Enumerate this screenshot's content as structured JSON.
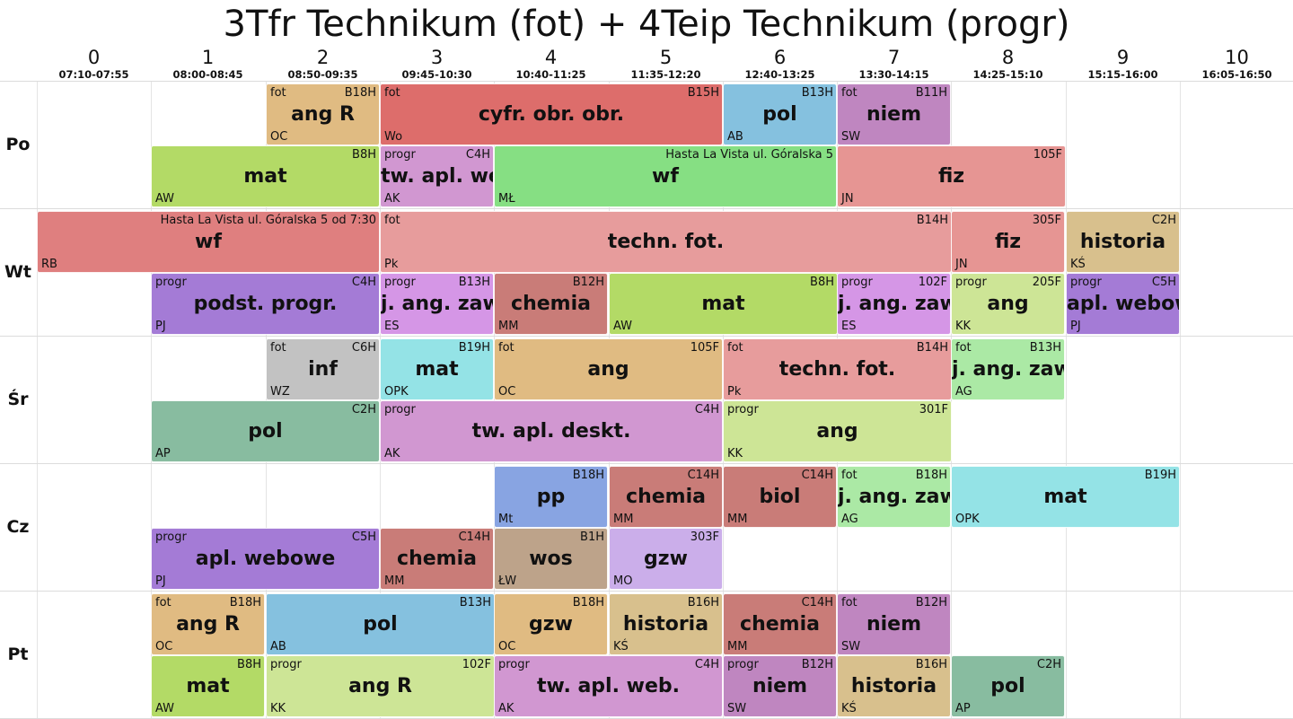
{
  "title": "3Tfr Technikum (fot) + 4Teip Technikum (progr)",
  "periods": [
    {
      "num": "0",
      "time": "07:10-07:55"
    },
    {
      "num": "1",
      "time": "08:00-08:45"
    },
    {
      "num": "2",
      "time": "08:50-09:35"
    },
    {
      "num": "3",
      "time": "09:45-10:30"
    },
    {
      "num": "4",
      "time": "10:40-11:25"
    },
    {
      "num": "5",
      "time": "11:35-12:20"
    },
    {
      "num": "6",
      "time": "12:40-13:25"
    },
    {
      "num": "7",
      "time": "13:30-14:15"
    },
    {
      "num": "8",
      "time": "14:25-15:10"
    },
    {
      "num": "9",
      "time": "15:15-16:00"
    },
    {
      "num": "10",
      "time": "16:05-16:50"
    }
  ],
  "days": [
    "Po",
    "Wt",
    "Śr",
    "Cz",
    "Pt"
  ],
  "lessons": [
    {
      "day": 0,
      "row": 0,
      "start": 2,
      "span": 1,
      "group": "fot",
      "room": "B18H",
      "subject": "ang R",
      "teacher": "OC",
      "color": "#e0bb82"
    },
    {
      "day": 0,
      "row": 0,
      "start": 3,
      "span": 3,
      "group": "fot",
      "room": "B15H",
      "subject": "cyfr. obr. obr.",
      "teacher": "Wo",
      "color": "#dd6d6b"
    },
    {
      "day": 0,
      "row": 0,
      "start": 6,
      "span": 1,
      "group": "",
      "room": "B13H",
      "subject": "pol",
      "teacher": "AB",
      "color": "#85c1df"
    },
    {
      "day": 0,
      "row": 0,
      "start": 7,
      "span": 1,
      "group": "fot",
      "room": "B11H",
      "subject": "niem",
      "teacher": "SW",
      "color": "#bf86c0"
    },
    {
      "day": 0,
      "row": 1,
      "start": 1,
      "span": 2,
      "group": "",
      "room": "B8H",
      "subject": "mat",
      "teacher": "AW",
      "color": "#b3da66"
    },
    {
      "day": 0,
      "row": 1,
      "start": 3,
      "span": 1,
      "group": "progr",
      "room": "C4H",
      "subject": "tw. apl. web.",
      "teacher": "AK",
      "color": "#d197d1"
    },
    {
      "day": 0,
      "row": 1,
      "start": 4,
      "span": 3,
      "group": "",
      "room": "Hasta La Vista ul. Góralska 5",
      "subject": "wf",
      "teacher": "MŁ",
      "color": "#86df83"
    },
    {
      "day": 0,
      "row": 1,
      "start": 7,
      "span": 2,
      "group": "",
      "room": "105F",
      "subject": "fiz",
      "teacher": "JN",
      "color": "#e69593"
    },
    {
      "day": 1,
      "row": 0,
      "start": 0,
      "span": 3,
      "group": "",
      "room": "Hasta La Vista ul. Góralska 5 od 7:30",
      "subject": "wf",
      "teacher": "RB",
      "color": "#df7f7f"
    },
    {
      "day": 1,
      "row": 0,
      "start": 3,
      "span": 5,
      "group": "fot",
      "room": "B14H",
      "subject": "techn. fot.",
      "teacher": "Pk",
      "color": "#e79c9c"
    },
    {
      "day": 1,
      "row": 0,
      "start": 8,
      "span": 1,
      "group": "",
      "room": "305F",
      "subject": "fiz",
      "teacher": "JN",
      "color": "#e69593"
    },
    {
      "day": 1,
      "row": 0,
      "start": 9,
      "span": 1,
      "group": "",
      "room": "C2H",
      "subject": "historia",
      "teacher": "KŚ",
      "color": "#d8c08d"
    },
    {
      "day": 1,
      "row": 1,
      "start": 1,
      "span": 2,
      "group": "progr",
      "room": "C4H",
      "subject": "podst. progr.",
      "teacher": "PJ",
      "color": "#a47bd6"
    },
    {
      "day": 1,
      "row": 1,
      "start": 3,
      "span": 1,
      "group": "progr",
      "room": "B13H",
      "subject": "j. ang. zaw.",
      "teacher": "ES",
      "color": "#d596e6"
    },
    {
      "day": 1,
      "row": 1,
      "start": 4,
      "span": 1,
      "group": "",
      "room": "B12H",
      "subject": "chemia",
      "teacher": "MM",
      "color": "#c97c78"
    },
    {
      "day": 1,
      "row": 1,
      "start": 5,
      "span": 2,
      "group": "",
      "room": "B8H",
      "subject": "mat",
      "teacher": "AW",
      "color": "#b3da66"
    },
    {
      "day": 1,
      "row": 1,
      "start": 7,
      "span": 1,
      "group": "progr",
      "room": "102F",
      "subject": "j. ang. zaw.",
      "teacher": "ES",
      "color": "#d596e6"
    },
    {
      "day": 1,
      "row": 1,
      "start": 8,
      "span": 1,
      "group": "progr",
      "room": "205F",
      "subject": "ang",
      "teacher": "KK",
      "color": "#cde596"
    },
    {
      "day": 1,
      "row": 1,
      "start": 9,
      "span": 1,
      "group": "progr",
      "room": "C5H",
      "subject": "apl. webowe",
      "teacher": "PJ",
      "color": "#a47bd6"
    },
    {
      "day": 2,
      "row": 0,
      "start": 2,
      "span": 1,
      "group": "fot",
      "room": "C6H",
      "subject": "inf",
      "teacher": "WZ",
      "color": "#c2c2c2"
    },
    {
      "day": 2,
      "row": 0,
      "start": 3,
      "span": 1,
      "group": "",
      "room": "B19H",
      "subject": "mat",
      "teacher": "OPK",
      "color": "#94e3e6"
    },
    {
      "day": 2,
      "row": 0,
      "start": 4,
      "span": 2,
      "group": "fot",
      "room": "105F",
      "subject": "ang",
      "teacher": "OC",
      "color": "#e0bb82"
    },
    {
      "day": 2,
      "row": 0,
      "start": 6,
      "span": 2,
      "group": "fot",
      "room": "B14H",
      "subject": "techn. fot.",
      "teacher": "Pk",
      "color": "#e79c9c"
    },
    {
      "day": 2,
      "row": 0,
      "start": 8,
      "span": 1,
      "group": "fot",
      "room": "B13H",
      "subject": "j. ang. zaw.",
      "teacher": "AG",
      "color": "#abe9a5"
    },
    {
      "day": 2,
      "row": 1,
      "start": 1,
      "span": 2,
      "group": "",
      "room": "C2H",
      "subject": "pol",
      "teacher": "AP",
      "color": "#88bca0"
    },
    {
      "day": 2,
      "row": 1,
      "start": 3,
      "span": 3,
      "group": "progr",
      "room": "C4H",
      "subject": "tw. apl. deskt.",
      "teacher": "AK",
      "color": "#d197d1"
    },
    {
      "day": 2,
      "row": 1,
      "start": 6,
      "span": 2,
      "group": "progr",
      "room": "301F",
      "subject": "ang",
      "teacher": "KK",
      "color": "#cde596"
    },
    {
      "day": 3,
      "row": 0,
      "start": 4,
      "span": 1,
      "group": "",
      "room": "B18H",
      "subject": "pp",
      "teacher": "Mt",
      "color": "#88a4e2"
    },
    {
      "day": 3,
      "row": 0,
      "start": 5,
      "span": 1,
      "group": "",
      "room": "C14H",
      "subject": "chemia",
      "teacher": "MM",
      "color": "#c97c78"
    },
    {
      "day": 3,
      "row": 0,
      "start": 6,
      "span": 1,
      "group": "",
      "room": "C14H",
      "subject": "biol",
      "teacher": "MM",
      "color": "#c97c78"
    },
    {
      "day": 3,
      "row": 0,
      "start": 7,
      "span": 1,
      "group": "fot",
      "room": "B18H",
      "subject": "j. ang. zaw.",
      "teacher": "AG",
      "color": "#abe9a5"
    },
    {
      "day": 3,
      "row": 0,
      "start": 8,
      "span": 2,
      "group": "",
      "room": "B19H",
      "subject": "mat",
      "teacher": "OPK",
      "color": "#94e3e6"
    },
    {
      "day": 3,
      "row": 1,
      "start": 1,
      "span": 2,
      "group": "progr",
      "room": "C5H",
      "subject": "apl. webowe",
      "teacher": "PJ",
      "color": "#a47bd6"
    },
    {
      "day": 3,
      "row": 1,
      "start": 3,
      "span": 1,
      "group": "",
      "room": "C14H",
      "subject": "chemia",
      "teacher": "MM",
      "color": "#c97c78"
    },
    {
      "day": 3,
      "row": 1,
      "start": 4,
      "span": 1,
      "group": "",
      "room": "B1H",
      "subject": "wos",
      "teacher": "ŁW",
      "color": "#bda38a"
    },
    {
      "day": 3,
      "row": 1,
      "start": 5,
      "span": 1,
      "group": "",
      "room": "303F",
      "subject": "gzw",
      "teacher": "MO",
      "color": "#cbaeea"
    },
    {
      "day": 4,
      "row": 0,
      "start": 1,
      "span": 1,
      "group": "fot",
      "room": "B18H",
      "subject": "ang R",
      "teacher": "OC",
      "color": "#e0bb82"
    },
    {
      "day": 4,
      "row": 0,
      "start": 2,
      "span": 2,
      "group": "",
      "room": "B13H",
      "subject": "pol",
      "teacher": "AB",
      "color": "#85c1df"
    },
    {
      "day": 4,
      "row": 0,
      "start": 4,
      "span": 1,
      "group": "",
      "room": "B18H",
      "subject": "gzw",
      "teacher": "OC",
      "color": "#e0bb82"
    },
    {
      "day": 4,
      "row": 0,
      "start": 5,
      "span": 1,
      "group": "",
      "room": "B16H",
      "subject": "historia",
      "teacher": "KŚ",
      "color": "#d8c08d"
    },
    {
      "day": 4,
      "row": 0,
      "start": 6,
      "span": 1,
      "group": "",
      "room": "C14H",
      "subject": "chemia",
      "teacher": "MM",
      "color": "#c97c78"
    },
    {
      "day": 4,
      "row": 0,
      "start": 7,
      "span": 1,
      "group": "fot",
      "room": "B12H",
      "subject": "niem",
      "teacher": "SW",
      "color": "#bf86c0"
    },
    {
      "day": 4,
      "row": 1,
      "start": 1,
      "span": 1,
      "group": "",
      "room": "B8H",
      "subject": "mat",
      "teacher": "AW",
      "color": "#b3da66"
    },
    {
      "day": 4,
      "row": 1,
      "start": 2,
      "span": 2,
      "group": "progr",
      "room": "102F",
      "subject": "ang R",
      "teacher": "KK",
      "color": "#cde596"
    },
    {
      "day": 4,
      "row": 1,
      "start": 4,
      "span": 2,
      "group": "progr",
      "room": "C4H",
      "subject": "tw. apl. web.",
      "teacher": "AK",
      "color": "#d197d1"
    },
    {
      "day": 4,
      "row": 1,
      "start": 6,
      "span": 1,
      "group": "progr",
      "room": "B12H",
      "subject": "niem",
      "teacher": "SW",
      "color": "#bf86c0"
    },
    {
      "day": 4,
      "row": 1,
      "start": 7,
      "span": 1,
      "group": "",
      "room": "B16H",
      "subject": "historia",
      "teacher": "KŚ",
      "color": "#d8c08d"
    },
    {
      "day": 4,
      "row": 1,
      "start": 8,
      "span": 1,
      "group": "",
      "room": "C2H",
      "subject": "pol",
      "teacher": "AP",
      "color": "#88bca0"
    }
  ]
}
